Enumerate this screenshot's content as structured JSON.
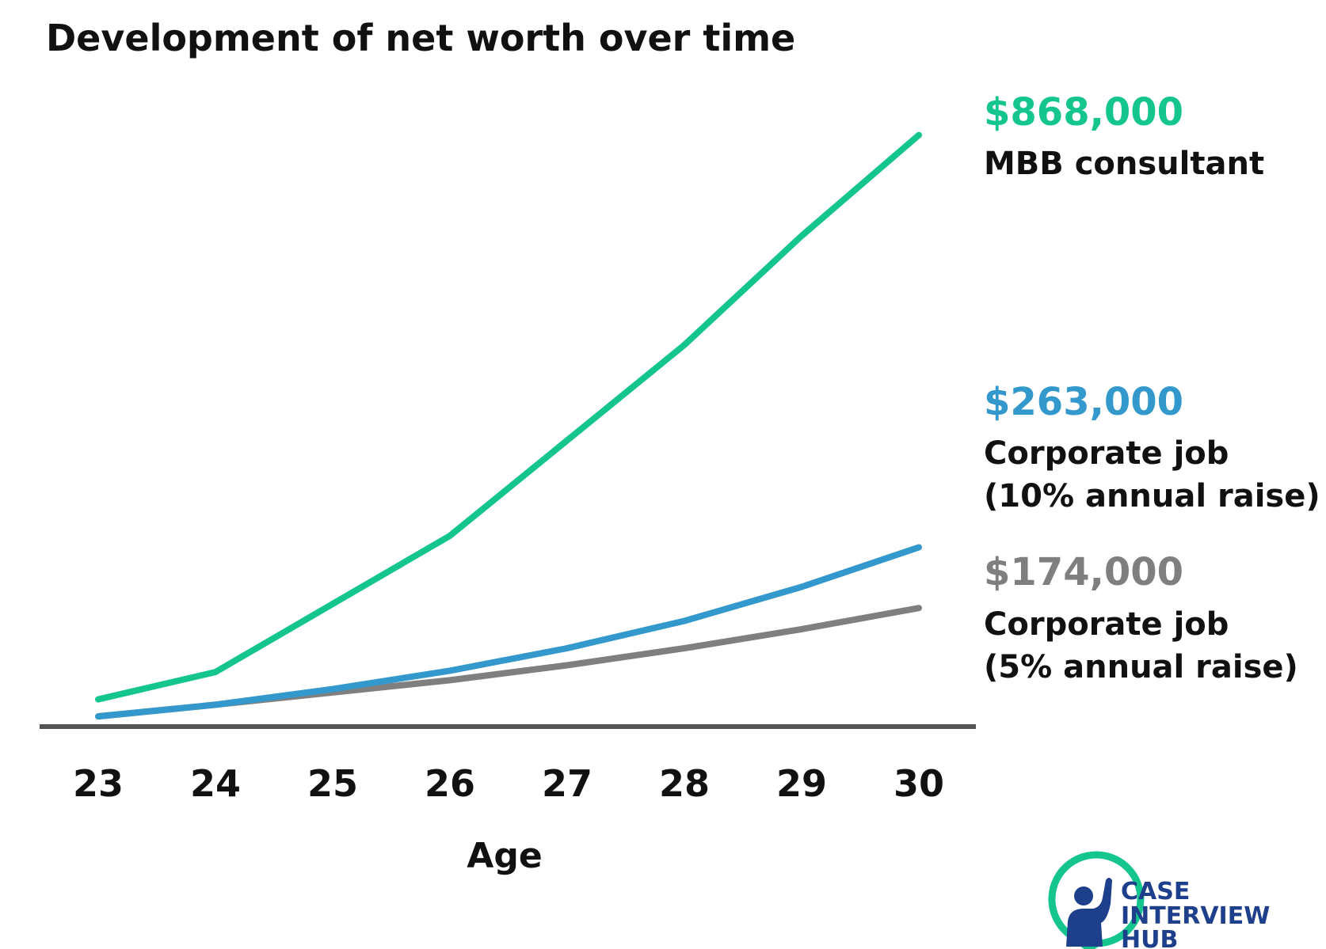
{
  "colors": {
    "mbb": "#14c58d",
    "corp10": "#3399cc",
    "corp5": "#7f7f7f",
    "axis": "#555555",
    "logo_blue": "#1d3f8c",
    "logo_green": "#14c58d"
  },
  "chart_data": {
    "type": "line",
    "title": "Development of net worth over time",
    "xlabel": "Age",
    "ylabel": "",
    "x": [
      23,
      24,
      25,
      26,
      27,
      28,
      29,
      30
    ],
    "ylim": [
      0,
      950000
    ],
    "grid": false,
    "series": [
      {
        "name": "MBB consultant",
        "color": "#14c58d",
        "value_label": "$868,000",
        "values": [
          40000,
          80000,
          180000,
          280000,
          420000,
          560000,
          720000,
          868000
        ]
      },
      {
        "name": "Corporate job (10% annual raise)",
        "color": "#3399cc",
        "value_label": "$263,000",
        "values": [
          15000,
          32000,
          55000,
          82000,
          115000,
          155000,
          205000,
          263000
        ]
      },
      {
        "name": "Corporate job (5% annual raise)",
        "color": "#7f7f7f",
        "value_label": "$174,000",
        "values": [
          15000,
          32000,
          50000,
          68000,
          90000,
          115000,
          143000,
          174000
        ]
      }
    ]
  },
  "labels": {
    "mbb_value": "$868,000",
    "mbb_line1": "MBB consultant",
    "corp10_value": "$263,000",
    "corp10_line1": "Corporate job",
    "corp10_line2": "(10% annual raise)",
    "corp5_value": "$174,000",
    "corp5_line1": "Corporate job",
    "corp5_line2": "(5% annual raise)"
  },
  "logo": {
    "line1": "CASE",
    "line2": "INTERVIEW",
    "line3": "HUB",
    "icon": "person-chat-bubble-icon"
  }
}
